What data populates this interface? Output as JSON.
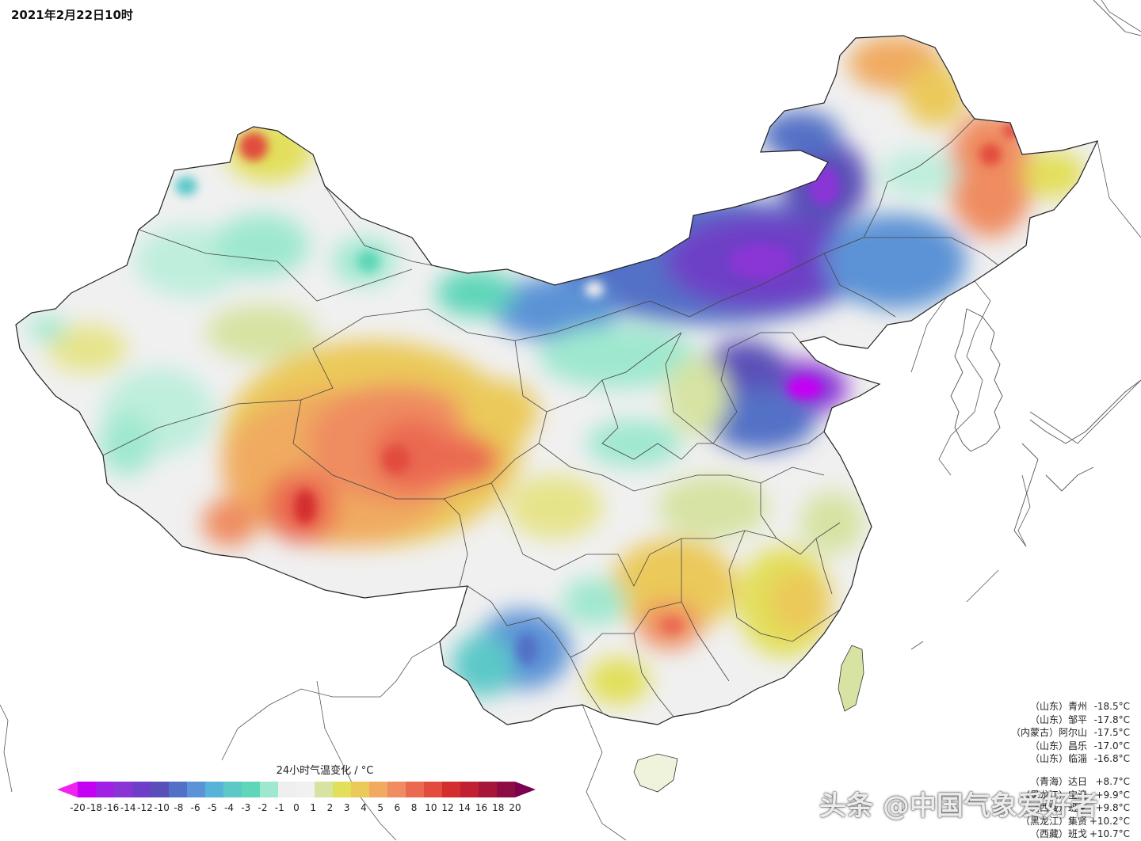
{
  "timestamp": "2021年2月22日10时",
  "legend": {
    "title": "24小时气温变化 / °C",
    "tick_labels": [
      "-20",
      "-18",
      "-16",
      "-14",
      "-12",
      "-10",
      "-8",
      "-6",
      "-5",
      "-4",
      "-3",
      "-2",
      "-1",
      "0",
      "1",
      "2",
      "3",
      "4",
      "5",
      "6",
      "8",
      "10",
      "12",
      "14",
      "16",
      "18",
      "20"
    ],
    "colors": [
      "#c400f5",
      "#a020e6",
      "#8a34d6",
      "#6e3fc6",
      "#5a4fb8",
      "#5271c6",
      "#5b93d6",
      "#57b3d8",
      "#5cc8c8",
      "#5fd6b8",
      "#9fe8cf",
      "#efefef",
      "#f1f1f1",
      "#d6e3a3",
      "#e2df5a",
      "#ebc95a",
      "#f0ab60",
      "#ef8c61",
      "#ea6951",
      "#e24c3e",
      "#d42d2d",
      "#c02030",
      "#a8153a",
      "#8e0c44"
    ],
    "low_end_color": "#f022f0",
    "high_end_color": "#7a0050"
  },
  "stations": {
    "coldest": [
      {
        "province": "（山东）",
        "name": "青州",
        "value": "-18.5°C"
      },
      {
        "province": "（山东）",
        "name": "邹平",
        "value": "-17.8°C"
      },
      {
        "province": "（内蒙古）",
        "name": "阿尔山",
        "value": "-17.5°C"
      },
      {
        "province": "（山东）",
        "name": "昌乐",
        "value": "-17.0°C"
      },
      {
        "province": "（山东）",
        "name": "临淄",
        "value": "-16.8°C"
      }
    ],
    "warmest": [
      {
        "province": "（青海）",
        "name": "达日",
        "value": "+8.7°C"
      },
      {
        "province": "（黑龙江）",
        "name": "宝清",
        "value": "+9.9°C"
      },
      {
        "province": "（西藏）",
        "name": "班戈",
        "value": "+9.8°C"
      },
      {
        "province": "（黑龙江）",
        "name": "集贤",
        "value": "+10.2°C"
      },
      {
        "province": "（西藏）",
        "name": "班戈",
        "value": "+10.7°C"
      }
    ]
  },
  "watermark": "头条 @中国气象爱好者"
}
